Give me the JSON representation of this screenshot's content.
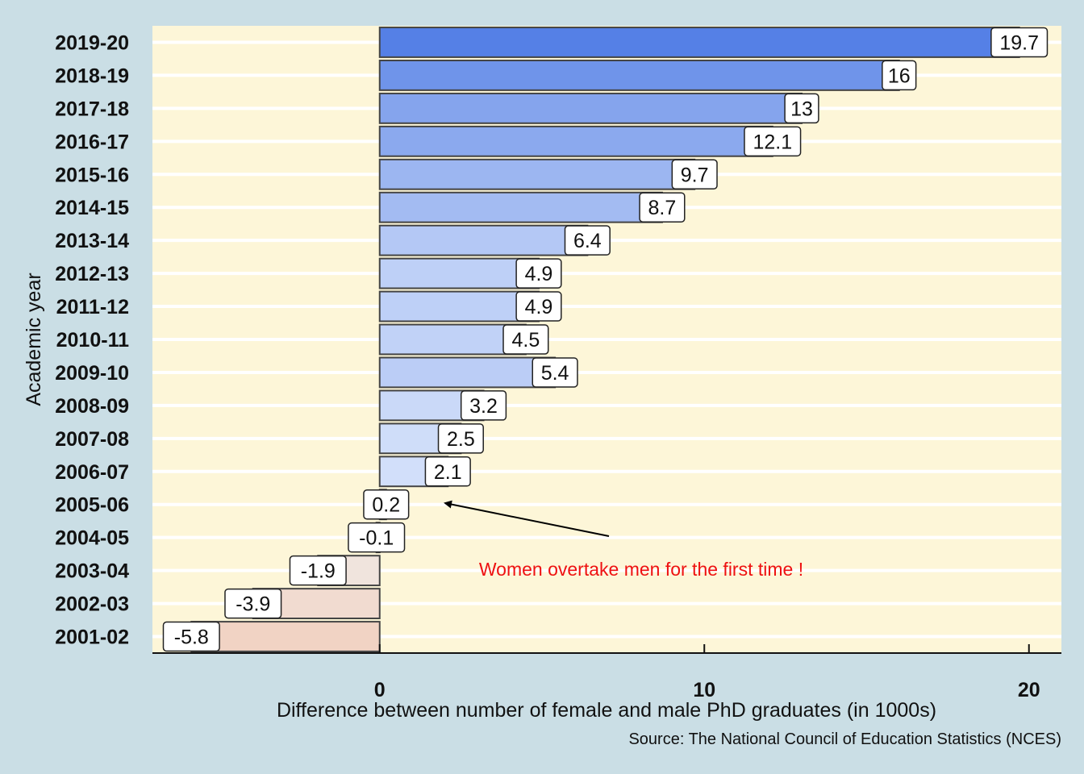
{
  "chart_data": {
    "type": "bar",
    "orientation": "horizontal",
    "xlabel": "Difference between number of female and male PhD graduates (in 1000s)",
    "ylabel": "Academic year",
    "caption": "Source: The National Council of Education Statistics (NCES)",
    "xlim": [
      -7,
      21
    ],
    "xticks": [
      0,
      10,
      20
    ],
    "xtick_labels": [
      "0",
      "10",
      "20"
    ],
    "grid": "horizontal",
    "legend": "none",
    "categories": [
      "2001-02",
      "2002-03",
      "2003-04",
      "2004-05",
      "2005-06",
      "2006-07",
      "2007-08",
      "2008-09",
      "2009-10",
      "2010-11",
      "2011-12",
      "2012-13",
      "2013-14",
      "2014-15",
      "2015-16",
      "2016-17",
      "2017-18",
      "2018-19",
      "2019-20"
    ],
    "values": [
      -5.8,
      -3.9,
      -1.9,
      -0.1,
      0.2,
      2.1,
      2.5,
      3.2,
      5.4,
      4.5,
      4.9,
      4.9,
      6.4,
      8.7,
      9.7,
      12.1,
      13,
      16,
      19.7
    ],
    "value_labels": [
      "-5.8",
      "-3.9",
      "-1.9",
      "-0.1",
      "0.2",
      "2.1",
      "2.5",
      "3.2",
      "5.4",
      "4.5",
      "4.9",
      "4.9",
      "6.4",
      "8.7",
      "9.7",
      "12.1",
      "13",
      "16",
      "19.7"
    ],
    "annotation": {
      "text": "Women overtake men for the first time !",
      "color": "#ee1111",
      "arrow_target_category": "2005-06"
    },
    "colors": {
      "panel_background": "#fdf6d8",
      "page_background": "#cadee5",
      "positive_bar_max": "#5580e6",
      "positive_bar_min": "#e1eafc",
      "negative_bar_max": "#f1d3c4",
      "negative_bar_min": "#f0ece9",
      "bar_outline": "#444444"
    }
  }
}
